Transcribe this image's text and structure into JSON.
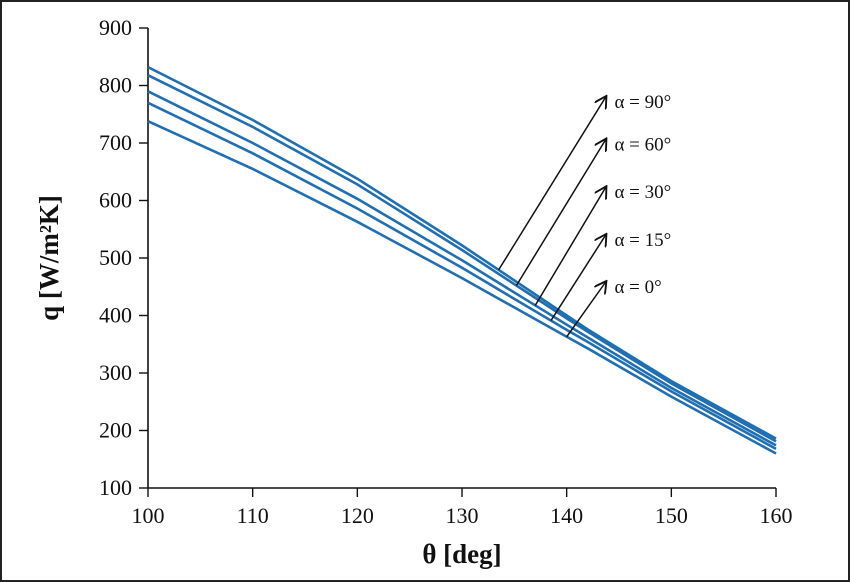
{
  "chart_data": {
    "type": "line",
    "xlabel": "θ [deg]",
    "ylabel": "q [W/m²K]",
    "xlim": [
      100,
      160
    ],
    "ylim": [
      100,
      900
    ],
    "xticks": [
      100,
      110,
      120,
      130,
      140,
      150,
      160
    ],
    "yticks": [
      100,
      200,
      300,
      400,
      500,
      600,
      700,
      800,
      900
    ],
    "grid": false,
    "series": [
      {
        "name": "α = 90°",
        "x": [
          100,
          110,
          120,
          130,
          140,
          142,
          150,
          160
        ],
        "y": [
          832,
          740,
          638,
          522,
          400,
          376,
          286,
          186
        ],
        "label_y": 782,
        "arrow_from_x": 133.5
      },
      {
        "name": "α = 60°",
        "x": [
          100,
          110,
          120,
          130,
          140,
          142,
          150,
          160
        ],
        "y": [
          818,
          728,
          628,
          514,
          395,
          372,
          282,
          181
        ],
        "label_y": 708,
        "arrow_from_x": 135.2
      },
      {
        "name": "α = 30°",
        "x": [
          100,
          110,
          120,
          130,
          140,
          142,
          150,
          160
        ],
        "y": [
          790,
          700,
          603,
          496,
          384,
          362,
          274,
          174
        ],
        "label_y": 625,
        "arrow_from_x": 137.0
      },
      {
        "name": "α = 15°",
        "x": [
          100,
          110,
          120,
          130,
          140,
          142,
          150,
          160
        ],
        "y": [
          770,
          682,
          586,
          483,
          375,
          354,
          268,
          168
        ],
        "label_y": 542,
        "arrow_from_x": 138.5
      },
      {
        "name": "α = 0°",
        "x": [
          100,
          110,
          120,
          130,
          140,
          142,
          150,
          160
        ],
        "y": [
          738,
          655,
          563,
          465,
          363,
          343,
          259,
          160
        ],
        "label_y": 460,
        "arrow_from_x": 140.0
      }
    ]
  }
}
